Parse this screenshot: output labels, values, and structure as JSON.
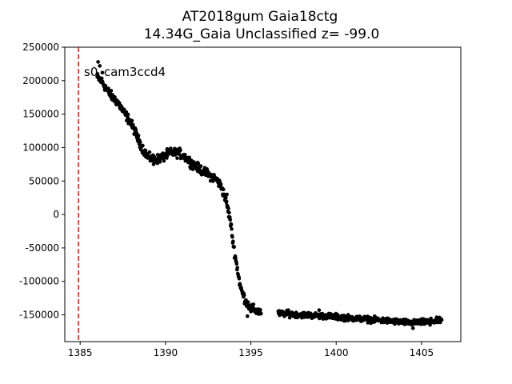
{
  "chart_data": {
    "type": "scatter",
    "title_line1": "AT2018gum  Gaia18ctg",
    "title_line2": "14.34G_Gaia Unclassified z= -99.0",
    "xlabel": "",
    "ylabel": "",
    "xlim": [
      1384.1,
      1407.3
    ],
    "ylim": [
      -190000,
      250000
    ],
    "x_ticks": [
      1385,
      1390,
      1395,
      1400,
      1405
    ],
    "y_ticks": [
      250000,
      200000,
      150000,
      100000,
      50000,
      0,
      -50000,
      -100000,
      -150000
    ],
    "grid": false,
    "marker_color": "#000000",
    "vline": {
      "x": 1384.9,
      "color": "#d62728",
      "style": "dashed"
    },
    "annotation": "s0_cam3ccd4",
    "anchors": [
      [
        1386.0,
        205000
      ],
      [
        1386.3,
        198000
      ],
      [
        1386.6,
        185000
      ],
      [
        1386.9,
        175000
      ],
      [
        1387.2,
        168000
      ],
      [
        1387.5,
        155000
      ],
      [
        1387.9,
        140000
      ],
      [
        1388.2,
        125000
      ],
      [
        1388.4,
        112000
      ],
      [
        1388.7,
        97000
      ],
      [
        1389.0,
        85000
      ],
      [
        1389.4,
        82000
      ],
      [
        1389.8,
        85000
      ],
      [
        1390.3,
        92000
      ],
      [
        1390.8,
        92000
      ],
      [
        1391.2,
        85000
      ],
      [
        1391.6,
        75000
      ],
      [
        1392.0,
        68000
      ],
      [
        1392.5,
        60000
      ],
      [
        1393.0,
        52000
      ],
      [
        1393.3,
        40000
      ],
      [
        1393.6,
        15000
      ],
      [
        1393.8,
        -10000
      ],
      [
        1394.0,
        -50000
      ],
      [
        1394.2,
        -80000
      ],
      [
        1394.4,
        -110000
      ],
      [
        1394.7,
        -130000
      ],
      [
        1395.0,
        -140000
      ],
      [
        1395.4,
        -145000
      ],
      [
        1396.7,
        -148000
      ],
      [
        1398.0,
        -150000
      ],
      [
        1399.5,
        -152000
      ],
      [
        1401.0,
        -155000
      ],
      [
        1402.5,
        -158000
      ],
      [
        1403.5,
        -160000
      ],
      [
        1404.5,
        -162000
      ],
      [
        1405.5,
        -160000
      ],
      [
        1406.2,
        -158000
      ]
    ],
    "outliers": [
      [
        1386.05,
        228000
      ],
      [
        1386.15,
        222000
      ],
      [
        1386.3,
        212000
      ],
      [
        1389.3,
        75000
      ],
      [
        1390.1,
        98000
      ],
      [
        1393.6,
        30000
      ],
      [
        1394.8,
        -152000
      ],
      [
        1395.0,
        -145000
      ],
      [
        1397.2,
        -143000
      ],
      [
        1399.0,
        -143000
      ],
      [
        1404.5,
        -170000
      ],
      [
        1405.5,
        -165000
      ]
    ],
    "gap": [
      1395.6,
      1396.6
    ]
  }
}
